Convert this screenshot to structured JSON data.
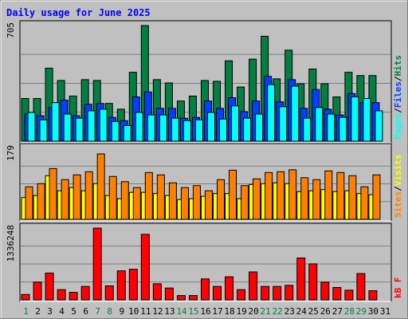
{
  "chart_data": {
    "type": "bar",
    "title": "Daily usage for June 2025",
    "colors": {
      "background": "#c0c0c0",
      "title": "#0000ff",
      "hits": "#008040",
      "files": "#0040ff",
      "pages": "#00ffff",
      "visits": "#ffff00",
      "sites": "#ff8000",
      "kbytes": "#ff0000",
      "weekend_day": "#008040",
      "weekday": "#000000"
    },
    "x": {
      "days": [
        "1",
        "2",
        "3",
        "4",
        "5",
        "6",
        "7",
        "8",
        "9",
        "10",
        "11",
        "12",
        "13",
        "14",
        "15",
        "16",
        "17",
        "18",
        "19",
        "20",
        "21",
        "22",
        "23",
        "24",
        "25",
        "26",
        "27",
        "28",
        "29",
        "30",
        "31"
      ],
      "weekend_days": [
        "1",
        "7",
        "8",
        "14",
        "15",
        "21",
        "22",
        "28",
        "29"
      ]
    },
    "panels": [
      {
        "id": "usage",
        "ymax_label": "705",
        "ymax": 705,
        "side_label": [
          "Pages",
          "Files",
          "Hits"
        ],
        "separator": "/",
        "series": [
          {
            "name": "Hits",
            "color_key": "hits",
            "values": [
              260,
              260,
              445,
              370,
              275,
              375,
              370,
              230,
              195,
              420,
              705,
              375,
              355,
              245,
              275,
              370,
              365,
              490,
              330,
              500,
              640,
              380,
              555,
              350,
              440,
              350,
              270,
              420,
              400,
              400,
              0
            ]
          },
          {
            "name": "Files",
            "color_key": "files",
            "values": [
              165,
              155,
              205,
              250,
              155,
              225,
              230,
              145,
              125,
              270,
              300,
              200,
              200,
              140,
              145,
              245,
              200,
              265,
              180,
              245,
              395,
              240,
              375,
              200,
              315,
              195,
              160,
              290,
              235,
              235,
              0
            ]
          },
          {
            "name": "Pages",
            "color_key": "pages",
            "values": [
              175,
              130,
              235,
              165,
              140,
              185,
              195,
              120,
              95,
              175,
              160,
              160,
              140,
              125,
              130,
              175,
              135,
              215,
              140,
              165,
              345,
              210,
              335,
              140,
              205,
              165,
              145,
              270,
              260,
              185,
              0
            ]
          }
        ]
      },
      {
        "id": "visits",
        "ymax_label": "179",
        "ymax": 179,
        "side_label": [
          "Sites",
          "Visits"
        ],
        "separator": "/",
        "series": [
          {
            "name": "Visits",
            "color_key": "visits",
            "values": [
              55,
              60,
              110,
              72,
              80,
              72,
              90,
              60,
              52,
              68,
              68,
              65,
              60,
              50,
              52,
              58,
              65,
              65,
              52,
              88,
              90,
              92,
              90,
              70,
              72,
              75,
              70,
              72,
              65,
              62,
              0
            ]
          },
          {
            "name": "Sites",
            "color_key": "sites",
            "values": [
              82,
              90,
              128,
              100,
              112,
              120,
              165,
              108,
              95,
              80,
              118,
              112,
              92,
              80,
              85,
              72,
              100,
              124,
              85,
              102,
              118,
              120,
              125,
              105,
              100,
              122,
              118,
              110,
              82,
              112,
              0
            ]
          }
        ]
      },
      {
        "id": "kbytes",
        "ymax_label": "1336248",
        "ymax": 1336248,
        "side_label": [
          "kB F"
        ],
        "separator": "",
        "series": [
          {
            "name": "kB F",
            "color_key": "kbytes",
            "values": [
              100000,
              330000,
              500000,
              190000,
              140000,
              250000,
              1336248,
              260000,
              540000,
              570000,
              1220000,
              300000,
              220000,
              80000,
              80000,
              390000,
              250000,
              430000,
              190000,
              520000,
              250000,
              250000,
              270000,
              780000,
              670000,
              330000,
              230000,
              180000,
              490000,
              170000,
              0
            ]
          }
        ]
      }
    ]
  }
}
